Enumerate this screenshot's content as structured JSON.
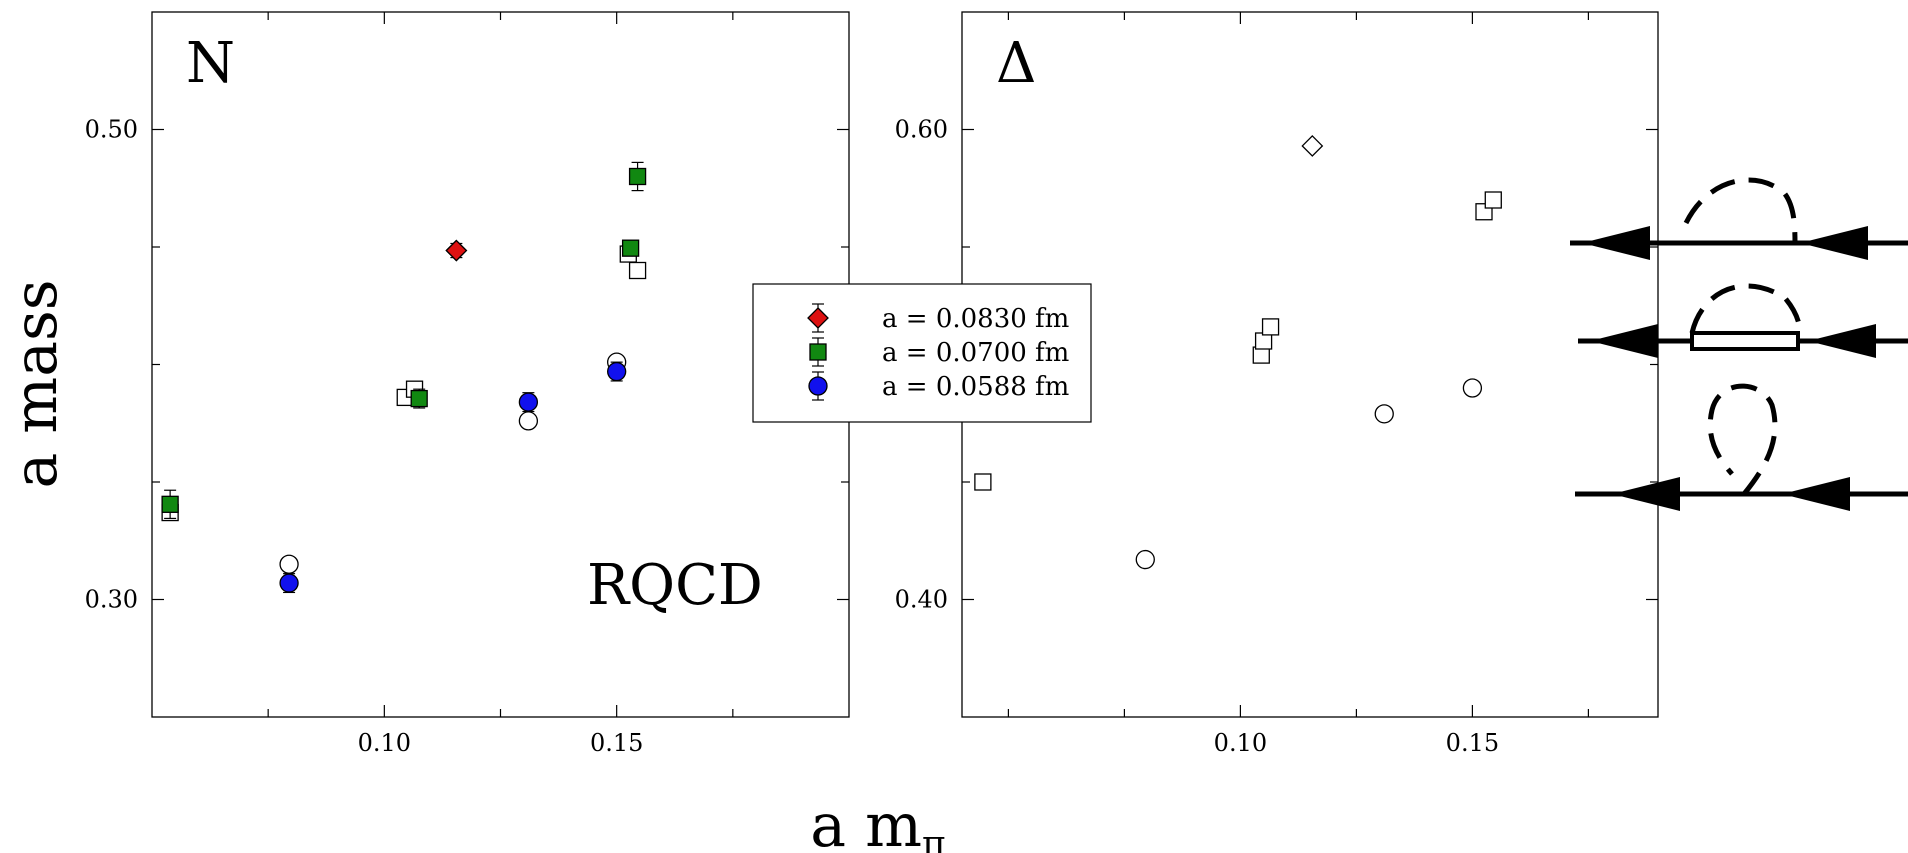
{
  "chart_data": [
    {
      "type": "scatter",
      "panel_label": "N",
      "annotation": "RQCD",
      "xlabel": "",
      "ylabel": "",
      "xlim": [
        0.05,
        0.2
      ],
      "ylim": [
        0.25,
        0.55
      ],
      "xticks": [
        0.1,
        0.15
      ],
      "xtick_labels": [
        "0.10",
        "0.15"
      ],
      "yticks": [
        0.3,
        0.5
      ],
      "ytick_labels": [
        "0.30",
        "0.50"
      ],
      "series": [
        {
          "name": "a = 0.0830 fm",
          "marker": "diamond",
          "color": "#dd1111",
          "points": [
            {
              "x": 0.1155,
              "y": 0.4485,
              "err": 0.003
            }
          ]
        },
        {
          "name": "a = 0.0700 fm",
          "marker": "square",
          "color": "#118811",
          "points": [
            {
              "x": 0.0539,
              "y": 0.3405,
              "err": 0.006
            },
            {
              "x": 0.1075,
              "y": 0.3855,
              "err": 0.004
            },
            {
              "x": 0.153,
              "y": 0.4495,
              "err": 0.003
            },
            {
              "x": 0.1545,
              "y": 0.48,
              "err": 0.006
            }
          ]
        },
        {
          "name": "a = 0.0588 fm",
          "marker": "circle",
          "color": "#1111ee",
          "points": [
            {
              "x": 0.0795,
              "y": 0.307,
              "err": 0.004
            },
            {
              "x": 0.131,
              "y": 0.384,
              "err": 0.004
            },
            {
              "x": 0.15,
              "y": 0.397,
              "err": 0.004
            }
          ]
        },
        {
          "name": "",
          "marker": "open-diamond",
          "color": "#000000",
          "points": [
            {
              "x": 0.1155,
              "y": 0.4485
            }
          ]
        },
        {
          "name": "",
          "marker": "open-square",
          "color": "#000000",
          "points": [
            {
              "x": 0.0539,
              "y": 0.337
            },
            {
              "x": 0.1045,
              "y": 0.386
            },
            {
              "x": 0.1065,
              "y": 0.3895
            },
            {
              "x": 0.1525,
              "y": 0.447
            },
            {
              "x": 0.1545,
              "y": 0.44
            }
          ]
        },
        {
          "name": "",
          "marker": "open-circle",
          "color": "#000000",
          "points": [
            {
              "x": 0.0795,
              "y": 0.315
            },
            {
              "x": 0.131,
              "y": 0.376
            },
            {
              "x": 0.15,
              "y": 0.401
            }
          ]
        }
      ]
    },
    {
      "type": "scatter",
      "panel_label": "Δ",
      "xlabel": "",
      "ylabel": "",
      "xlim": [
        0.04,
        0.19
      ],
      "ylim": [
        0.35,
        0.65
      ],
      "xticks": [
        0.1,
        0.15
      ],
      "xtick_labels": [
        "0.10",
        "0.15"
      ],
      "yticks": [
        0.4,
        0.6
      ],
      "ytick_labels": [
        "0.40",
        "0.60"
      ],
      "series": [
        {
          "name": "",
          "marker": "open-diamond",
          "color": "#000000",
          "points": [
            {
              "x": 0.1155,
              "y": 0.593
            }
          ]
        },
        {
          "name": "",
          "marker": "open-square",
          "color": "#000000",
          "points": [
            {
              "x": 0.0445,
              "y": 0.45
            },
            {
              "x": 0.1045,
              "y": 0.504
            },
            {
              "x": 0.105,
              "y": 0.51
            },
            {
              "x": 0.1065,
              "y": 0.516
            },
            {
              "x": 0.1525,
              "y": 0.565
            },
            {
              "x": 0.1545,
              "y": 0.57
            }
          ]
        },
        {
          "name": "",
          "marker": "open-circle",
          "color": "#000000",
          "points": [
            {
              "x": 0.0795,
              "y": 0.417
            },
            {
              "x": 0.131,
              "y": 0.479
            },
            {
              "x": 0.15,
              "y": 0.49
            }
          ]
        }
      ]
    }
  ],
  "axes": {
    "ylabel": "a mass",
    "xlabel_main": "a m",
    "xlabel_sub": "π"
  },
  "legend": {
    "entries": [
      {
        "label": "a = 0.0830 fm",
        "marker": "diamond",
        "color": "#dd1111"
      },
      {
        "label": "a = 0.0700 fm",
        "marker": "square",
        "color": "#118811"
      },
      {
        "label": "a = 0.0588 fm",
        "marker": "circle",
        "color": "#1111ee"
      }
    ]
  }
}
